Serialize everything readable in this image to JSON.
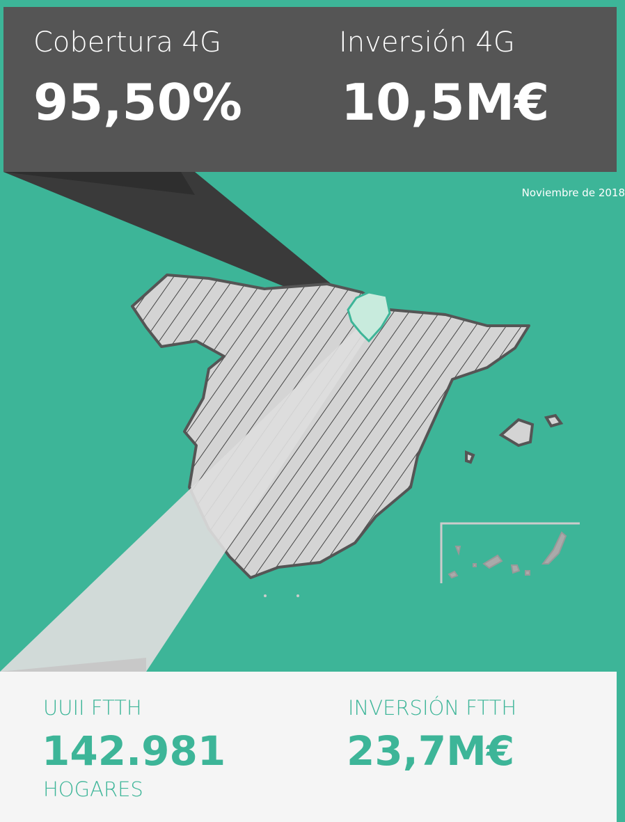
{
  "top_panel": {
    "stats": [
      {
        "label": "Cobertura 4G",
        "value": "95,50%"
      },
      {
        "label": "Inversión 4G",
        "value": "10,5M€"
      }
    ]
  },
  "date": "Noviembre de 2018",
  "bottom_panel": {
    "stats": [
      {
        "label": "UUII FTTH",
        "value": "142.981",
        "unit": "HOGARES"
      },
      {
        "label": "INVERSIÓN FTTH",
        "value": "23,7M€"
      }
    ]
  }
}
